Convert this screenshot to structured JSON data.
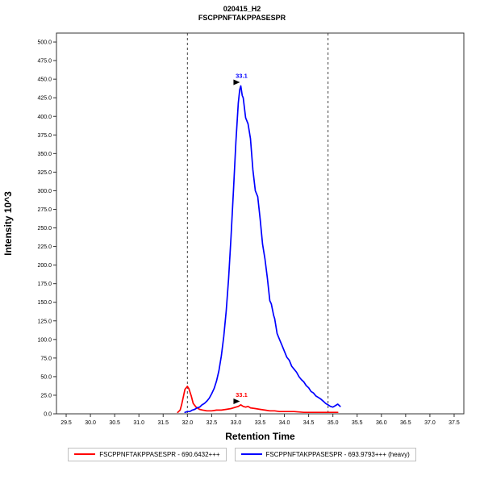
{
  "header": {
    "title": "020415_H2",
    "subtitle": "FSCPPNFTAKPPASESPR"
  },
  "chart_data": {
    "type": "line",
    "title": "020415_H2",
    "subtitle": "FSCPPNFTAKPPASESPR",
    "xlabel": "Retention Time",
    "ylabel": "Intensity 10^3",
    "xlim": [
      29.3,
      37.7
    ],
    "ylim": [
      0,
      512
    ],
    "x_ticks": [
      29.5,
      30.0,
      30.5,
      31.0,
      31.5,
      32.0,
      32.5,
      33.0,
      33.5,
      34.0,
      34.5,
      35.0,
      35.5,
      36.0,
      36.5,
      37.0,
      37.5
    ],
    "y_ticks": [
      0,
      25,
      50,
      75,
      100,
      125,
      150,
      175,
      200,
      225,
      250,
      275,
      300,
      325,
      350,
      375,
      400,
      425,
      450,
      475,
      500
    ],
    "grid": false,
    "legend_position": "bottom",
    "boundaries": [
      32.0,
      34.9
    ],
    "series": [
      {
        "name": "FSCPPNFTAKPPASESPR - 690.6432+++",
        "color": "#ff0000",
        "annotation": {
          "x": 33.1,
          "y": 12,
          "label": "33.1"
        },
        "points": [
          [
            31.8,
            2
          ],
          [
            31.85,
            5
          ],
          [
            31.88,
            12
          ],
          [
            31.92,
            24
          ],
          [
            31.95,
            33
          ],
          [
            32.0,
            37
          ],
          [
            32.03,
            34
          ],
          [
            32.08,
            24
          ],
          [
            32.12,
            14
          ],
          [
            32.18,
            9
          ],
          [
            32.25,
            6
          ],
          [
            32.32,
            5
          ],
          [
            32.4,
            4
          ],
          [
            32.5,
            4
          ],
          [
            32.6,
            5
          ],
          [
            32.7,
            5
          ],
          [
            32.8,
            6
          ],
          [
            32.9,
            7
          ],
          [
            33.0,
            9
          ],
          [
            33.05,
            10
          ],
          [
            33.1,
            12
          ],
          [
            33.15,
            10
          ],
          [
            33.2,
            9
          ],
          [
            33.25,
            10
          ],
          [
            33.3,
            8
          ],
          [
            33.4,
            7
          ],
          [
            33.5,
            6
          ],
          [
            33.6,
            5
          ],
          [
            33.7,
            4
          ],
          [
            33.8,
            4
          ],
          [
            33.9,
            3
          ],
          [
            34.0,
            3
          ],
          [
            34.2,
            3
          ],
          [
            34.4,
            2
          ],
          [
            34.6,
            2
          ],
          [
            34.8,
            2
          ],
          [
            35.0,
            2
          ],
          [
            35.1,
            2
          ]
        ]
      },
      {
        "name": "FSCPPNFTAKPPASESPR - 693.9793+++ (heavy)",
        "color": "#0000ff",
        "annotation": {
          "x": 33.1,
          "y": 441,
          "label": "33.1"
        },
        "points": [
          [
            31.95,
            2
          ],
          [
            32.0,
            3
          ],
          [
            32.05,
            3
          ],
          [
            32.1,
            5
          ],
          [
            32.15,
            6
          ],
          [
            32.2,
            8
          ],
          [
            32.25,
            9
          ],
          [
            32.3,
            12
          ],
          [
            32.35,
            14
          ],
          [
            32.4,
            17
          ],
          [
            32.45,
            21
          ],
          [
            32.5,
            27
          ],
          [
            32.55,
            34
          ],
          [
            32.6,
            44
          ],
          [
            32.65,
            58
          ],
          [
            32.7,
            78
          ],
          [
            32.75,
            104
          ],
          [
            32.8,
            138
          ],
          [
            32.85,
            182
          ],
          [
            32.9,
            238
          ],
          [
            32.95,
            300
          ],
          [
            33.0,
            365
          ],
          [
            33.05,
            418
          ],
          [
            33.08,
            436
          ],
          [
            33.1,
            441
          ],
          [
            33.13,
            428
          ],
          [
            33.15,
            425
          ],
          [
            33.2,
            398
          ],
          [
            33.25,
            390
          ],
          [
            33.3,
            370
          ],
          [
            33.35,
            328
          ],
          [
            33.4,
            300
          ],
          [
            33.45,
            292
          ],
          [
            33.5,
            262
          ],
          [
            33.55,
            228
          ],
          [
            33.6,
            208
          ],
          [
            33.65,
            182
          ],
          [
            33.7,
            152
          ],
          [
            33.73,
            148
          ],
          [
            33.78,
            132
          ],
          [
            33.8,
            128
          ],
          [
            33.85,
            108
          ],
          [
            33.9,
            100
          ],
          [
            33.95,
            92
          ],
          [
            34.0,
            84
          ],
          [
            34.05,
            76
          ],
          [
            34.1,
            72
          ],
          [
            34.15,
            64
          ],
          [
            34.2,
            60
          ],
          [
            34.25,
            56
          ],
          [
            34.3,
            50
          ],
          [
            34.35,
            46
          ],
          [
            34.4,
            43
          ],
          [
            34.45,
            38
          ],
          [
            34.5,
            35
          ],
          [
            34.55,
            30
          ],
          [
            34.6,
            28
          ],
          [
            34.65,
            24
          ],
          [
            34.7,
            22
          ],
          [
            34.75,
            20
          ],
          [
            34.8,
            17
          ],
          [
            34.85,
            14
          ],
          [
            34.9,
            12
          ],
          [
            34.95,
            10
          ],
          [
            35.0,
            9
          ],
          [
            35.05,
            11
          ],
          [
            35.1,
            13
          ],
          [
            35.15,
            10
          ]
        ]
      }
    ]
  },
  "legend": {
    "items": [
      {
        "label": "FSCPPNFTAKPPASESPR - 690.6432+++",
        "color": "#ff0000"
      },
      {
        "label": "FSCPPNFTAKPPASESPR - 693.9793+++ (heavy)",
        "color": "#0000ff"
      }
    ]
  }
}
